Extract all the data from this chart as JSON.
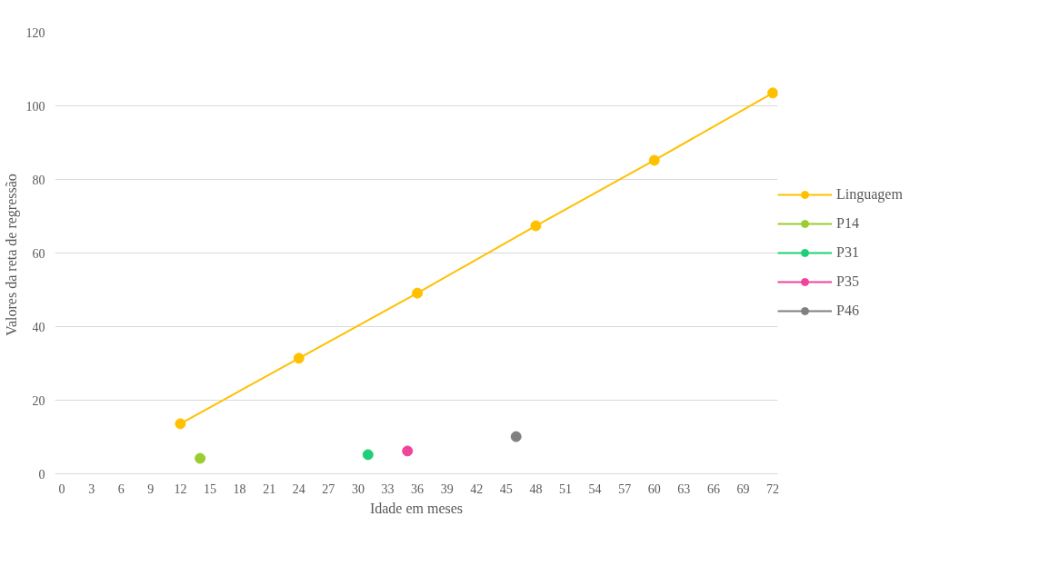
{
  "chart_data": {
    "type": "line",
    "xlabel": "Idade em meses",
    "ylabel": "Valores  da reta de regressão",
    "xlim": [
      -0.7,
      72.5
    ],
    "xticks": [
      0,
      3,
      6,
      9,
      12,
      15,
      18,
      21,
      24,
      27,
      30,
      33,
      36,
      39,
      42,
      45,
      48,
      51,
      54,
      57,
      60,
      63,
      66,
      69,
      72
    ],
    "ylim": [
      0,
      120
    ],
    "yticks": [
      0,
      20,
      40,
      60,
      80,
      100,
      120
    ],
    "grid": "y",
    "legend": "right",
    "marker": "circle",
    "line_style": "solid",
    "series": [
      {
        "name": "Linguagem",
        "color": "#ffc000",
        "x": [
          12,
          24,
          36,
          48,
          60,
          72
        ],
        "values": [
          13.6,
          31.4,
          49.1,
          67.4,
          85.2,
          103.5
        ]
      },
      {
        "name": "P14",
        "color": "#9acd32",
        "x": [
          14
        ],
        "values": [
          4.2
        ]
      },
      {
        "name": "P31",
        "color": "#1ecf78",
        "x": [
          31
        ],
        "values": [
          5.2
        ]
      },
      {
        "name": "P35",
        "color": "#f0439a",
        "x": [
          35
        ],
        "values": [
          6.2
        ]
      },
      {
        "name": "P46",
        "color": "#808080",
        "x": [
          46
        ],
        "values": [
          10.1
        ]
      }
    ]
  }
}
